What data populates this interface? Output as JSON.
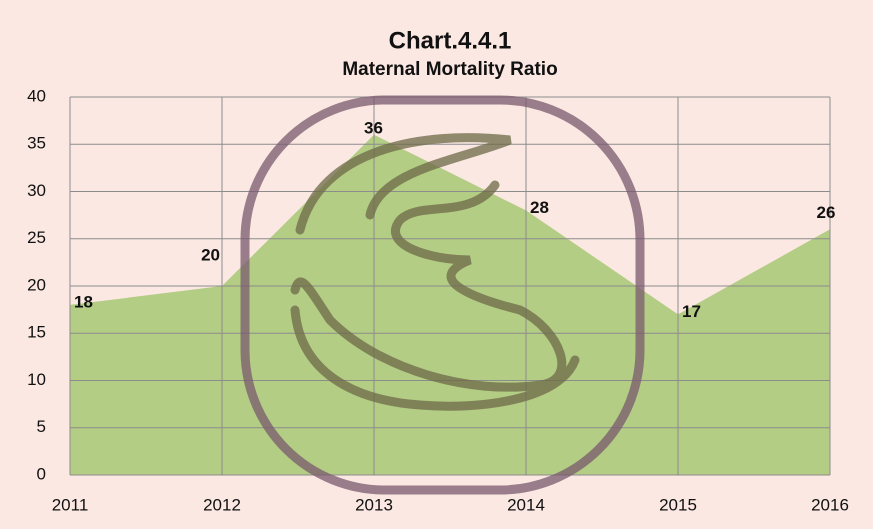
{
  "chart_data": {
    "type": "area",
    "title": "Chart.4.4.1",
    "subtitle": "Maternal Mortality Ratio",
    "categories": [
      "2011",
      "2012",
      "2013",
      "2014",
      "2015",
      "2016"
    ],
    "values": [
      18,
      20,
      36,
      28,
      17,
      26
    ],
    "color": "#b3cd85",
    "ylim": [
      0,
      40
    ],
    "yticks": [
      0,
      5,
      10,
      15,
      20,
      25,
      30,
      35,
      40
    ],
    "grid": true
  }
}
